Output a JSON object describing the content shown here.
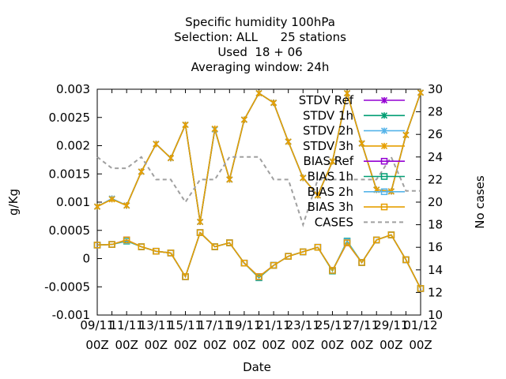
{
  "chart_data": {
    "type": "line",
    "title": [
      "Specific humidity 100hPa",
      "Selection: ALL      25 stations",
      "Used  18 + 06",
      "Averaging window: 24h"
    ],
    "xlabel": "Date",
    "ylabel": "g/Kg",
    "y2label": "No cases",
    "ylim": [
      -0.001,
      0.003
    ],
    "y2lim": [
      10,
      30
    ],
    "yticks": [
      -0.001,
      -0.0005,
      0,
      0.0005,
      0.001,
      0.0015,
      0.002,
      0.0025,
      0.003
    ],
    "ytick_labels": [
      "-0.001",
      "-0.0005",
      "0",
      "0.0005",
      "0.001",
      "0.0015",
      "0.002",
      "0.0025",
      "0.003"
    ],
    "y2ticks": [
      10,
      12,
      14,
      16,
      18,
      20,
      22,
      24,
      26,
      28,
      30
    ],
    "y2tick_labels": [
      "10",
      "12",
      "14",
      "16",
      "18",
      "20",
      "22",
      "24",
      "26",
      "28",
      "30"
    ],
    "x": [
      "09/11 00Z",
      "10/11 00Z",
      "11/11 00Z",
      "12/11 00Z",
      "13/11 00Z",
      "14/11 00Z",
      "15/11 00Z",
      "16/11 00Z",
      "17/11 00Z",
      "18/11 00Z",
      "19/11 00Z",
      "20/11 00Z",
      "21/11 00Z",
      "22/11 00Z",
      "23/11 00Z",
      "24/11 00Z",
      "25/11 00Z",
      "26/11 00Z",
      "27/11 00Z",
      "28/11 00Z",
      "29/11 00Z",
      "30/11 00Z",
      "01/12 00Z"
    ],
    "xtick_labels": [
      [
        "09/11",
        "00Z"
      ],
      [
        "11/11",
        "00Z"
      ],
      [
        "13/11",
        "00Z"
      ],
      [
        "15/11",
        "00Z"
      ],
      [
        "17/11",
        "00Z"
      ],
      [
        "19/11",
        "00Z"
      ],
      [
        "21/11",
        "00Z"
      ],
      [
        "23/11",
        "00Z"
      ],
      [
        "25/11",
        "00Z"
      ],
      [
        "27/11",
        "00Z"
      ],
      [
        "29/11",
        "00Z"
      ],
      [
        "01/12",
        "00Z"
      ]
    ],
    "legend_position": "top-right",
    "grid": false,
    "series": [
      {
        "name": "STDV Ref",
        "axis": "y1",
        "color": "#9400d3",
        "marker": "x-star",
        "values": [
          0.00092,
          0.00106,
          0.00094,
          0.00154,
          0.00203,
          0.00178,
          0.00237,
          0.00065,
          0.00229,
          0.0014,
          0.00246,
          0.00293,
          0.00276,
          0.00207,
          0.00143,
          0.00112,
          0.00172,
          0.00293,
          0.00204,
          0.00122,
          0.00119,
          0.00219,
          0.00294
        ]
      },
      {
        "name": "STDV 1h",
        "axis": "y1",
        "color": "#009e73",
        "marker": "x-star",
        "values": [
          0.00092,
          0.00106,
          0.00094,
          0.00154,
          0.00203,
          0.00178,
          0.00237,
          0.00065,
          0.00229,
          0.0014,
          0.00246,
          0.00293,
          0.00276,
          0.00207,
          0.00143,
          0.00112,
          0.00172,
          0.00293,
          0.00204,
          0.00122,
          0.00119,
          0.00219,
          0.00294
        ]
      },
      {
        "name": "STDV 2h",
        "axis": "y1",
        "color": "#56b4e9",
        "marker": "x-star",
        "values": [
          0.00092,
          0.00106,
          0.00094,
          0.00154,
          0.00203,
          0.00178,
          0.00237,
          0.00065,
          0.00229,
          0.0014,
          0.00246,
          0.00293,
          0.00276,
          0.00207,
          0.00143,
          0.00112,
          0.00172,
          0.00293,
          0.00204,
          0.00122,
          0.00119,
          0.00219,
          0.00294
        ]
      },
      {
        "name": "STDV 3h",
        "axis": "y1",
        "color": "#e69f00",
        "marker": "x-star",
        "values": [
          0.00092,
          0.00105,
          0.00094,
          0.00154,
          0.00203,
          0.00178,
          0.00237,
          0.00065,
          0.0023,
          0.0014,
          0.00246,
          0.00293,
          0.00276,
          0.00207,
          0.00143,
          0.00112,
          0.00172,
          0.00293,
          0.00204,
          0.00122,
          0.00119,
          0.00219,
          0.00294
        ]
      },
      {
        "name": "BIAS Ref",
        "axis": "y1",
        "color": "#9400d3",
        "marker": "square",
        "values": [
          0.00024,
          0.00025,
          0.00033,
          0.00021,
          0.00013,
          0.0001,
          -0.00032,
          0.00046,
          0.00021,
          0.00028,
          -8e-05,
          -0.00032,
          -0.00012,
          4e-05,
          0.00012,
          0.0002,
          -0.00021,
          0.00028,
          -7e-05,
          0.00033,
          0.00042,
          -2e-05,
          -0.00053
        ]
      },
      {
        "name": "BIAS 1h",
        "axis": "y1",
        "color": "#009e73",
        "marker": "square",
        "values": [
          0.00024,
          0.00025,
          0.00031,
          0.00021,
          0.00013,
          0.0001,
          -0.00032,
          0.00046,
          0.00021,
          0.00028,
          -8e-05,
          -0.00034,
          -0.00012,
          4e-05,
          0.00012,
          0.0002,
          -0.00022,
          0.00031,
          -7e-05,
          0.00033,
          0.00042,
          -2e-05,
          -0.00053
        ]
      },
      {
        "name": "BIAS 2h",
        "axis": "y1",
        "color": "#56b4e9",
        "marker": "square",
        "values": [
          0.00024,
          0.00025,
          0.00032,
          0.00021,
          0.00013,
          0.0001,
          -0.00032,
          0.00046,
          0.00021,
          0.00028,
          -8e-05,
          -0.00033,
          -0.00012,
          4e-05,
          0.00012,
          0.0002,
          -0.00021,
          0.0003,
          -7e-05,
          0.00033,
          0.00042,
          -2e-05,
          -0.00053
        ]
      },
      {
        "name": "BIAS 3h",
        "axis": "y1",
        "color": "#e69f00",
        "marker": "square",
        "values": [
          0.00024,
          0.00025,
          0.00033,
          0.00021,
          0.00013,
          0.0001,
          -0.00032,
          0.00046,
          0.00021,
          0.00028,
          -8e-05,
          -0.00032,
          -0.00012,
          4e-05,
          0.00012,
          0.0002,
          -0.00021,
          0.00028,
          -7e-05,
          0.00033,
          0.00042,
          -2e-05,
          -0.00053
        ]
      },
      {
        "name": "CASES",
        "axis": "y2",
        "color": "#a0a0a0",
        "dashed": true,
        "values": [
          24,
          23,
          23,
          24,
          22,
          22,
          20,
          22,
          22,
          24,
          24,
          24,
          22,
          22,
          18,
          22,
          22,
          22,
          22,
          22,
          24,
          21,
          21
        ]
      }
    ]
  }
}
